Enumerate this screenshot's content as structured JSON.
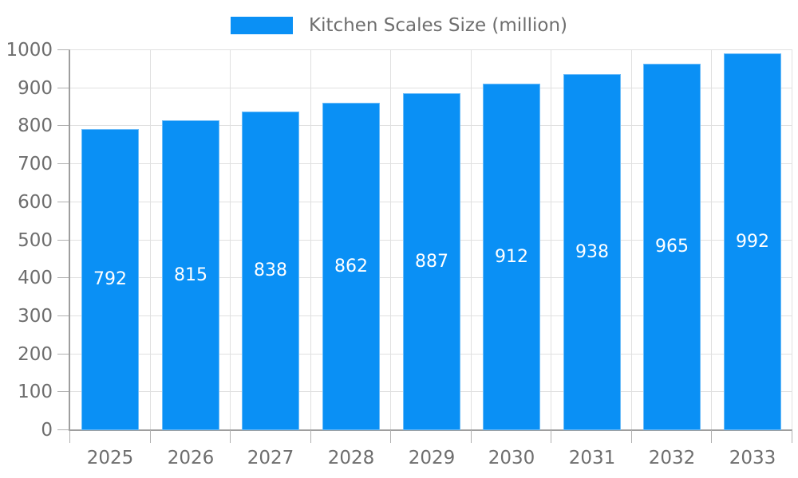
{
  "legend": {
    "label": "Kitchen Scales Size (million)"
  },
  "chart_data": {
    "type": "bar",
    "title": "Kitchen Scales Size (million)",
    "series_name": "Kitchen Scales Size (million)",
    "categories": [
      "2025",
      "2026",
      "2027",
      "2028",
      "2029",
      "2030",
      "2031",
      "2032",
      "2033"
    ],
    "values": [
      792,
      815,
      838,
      862,
      887,
      912,
      938,
      965,
      992
    ],
    "bar_value_labels": [
      "792",
      "815",
      "838",
      "862",
      "887",
      "912",
      "938",
      "965",
      "992"
    ],
    "xlabel": "",
    "ylabel": "",
    "ylim": [
      0,
      1000
    ],
    "ytick_step": 100,
    "ytick_labels": [
      "0",
      "100",
      "200",
      "300",
      "400",
      "500",
      "600",
      "700",
      "800",
      "900",
      "1000"
    ],
    "grid": true,
    "legend_position": "top-center",
    "colors": {
      "bar": "#0a90f5",
      "bar_label": "#ffffff",
      "axis_text": "#6e6e6e",
      "legend_text": "#6e6e6e",
      "gridline": "#e0e0e0",
      "axis_line": "#9e9e9e",
      "tick": "#b0b0b0",
      "background": "#ffffff"
    }
  }
}
